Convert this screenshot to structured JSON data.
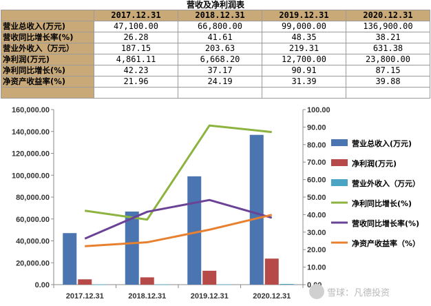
{
  "table": {
    "title": "营收及净利润表",
    "columns": [
      "2017.12.31",
      "2018.12.31",
      "2019.12.31",
      "2020.12.31"
    ],
    "rows": [
      {
        "label": "营业总收入(万元)",
        "values": [
          "47,100.00",
          "66,800.00",
          "99,000.00",
          "136,900.00"
        ]
      },
      {
        "label": "营收同比增长率(%)",
        "values": [
          "26.28",
          "41.61",
          "48.35",
          "38.21"
        ]
      },
      {
        "label": "营业外收入（万元）",
        "values": [
          "187.15",
          "203.63",
          "219.31",
          "631.38"
        ]
      },
      {
        "label": "净利润(万元)",
        "values": [
          "4,861.11",
          "6,668.20",
          "12,700.00",
          "23,800.00"
        ]
      },
      {
        "label": "净利同比增长(%)",
        "values": [
          "42.23",
          "37.17",
          "90.91",
          "87.15"
        ]
      },
      {
        "label": "净资产收益率(%)",
        "values": [
          "21.96",
          "24.19",
          "31.39",
          "39.88"
        ]
      }
    ]
  },
  "chart_data": {
    "type": "bar",
    "categories": [
      "2017.12.31",
      "2018.12.31",
      "2019.12.31",
      "2020.12.31"
    ],
    "y_left": {
      "range": [
        0,
        160000
      ],
      "ticks": [
        "0.00",
        "20,000.00",
        "40,000.00",
        "60,000.00",
        "80,000.00",
        "100,000.00",
        "120,000.00",
        "140,000.00",
        "160,000.00"
      ]
    },
    "y_right": {
      "range": [
        0,
        100
      ],
      "ticks": [
        "0.00",
        "10.00",
        "20.00",
        "30.00",
        "40.00",
        "50.00",
        "60.00",
        "70.00",
        "80.00",
        "90.00",
        "100.00"
      ]
    },
    "bar_series": [
      {
        "name": "营业总收入(万元)",
        "color": "#4a75b0",
        "values": [
          47100,
          66800,
          99000,
          136900
        ]
      },
      {
        "name": "净利润(万元)",
        "color": "#b64a48",
        "values": [
          4861.11,
          6668.2,
          12700,
          23800
        ]
      },
      {
        "name": "营业外收入（万元）",
        "color": "#4aa4c4",
        "values": [
          187.15,
          203.63,
          219.31,
          631.38
        ]
      }
    ],
    "line_series": [
      {
        "name": "净利同比增长(%)",
        "color": "#8cb33e",
        "values": [
          42.23,
          37.17,
          90.91,
          87.15
        ]
      },
      {
        "name": "营收同比增长率(%)",
        "color": "#6a4397",
        "values": [
          26.28,
          41.61,
          48.35,
          38.21
        ]
      },
      {
        "name": "净资产收益率（%）",
        "color": "#e7802f",
        "values": [
          21.96,
          24.19,
          31.39,
          39.88
        ]
      }
    ],
    "grid": false,
    "legend_position": "right"
  },
  "watermark": {
    "text": "雪球：凡德投资"
  }
}
